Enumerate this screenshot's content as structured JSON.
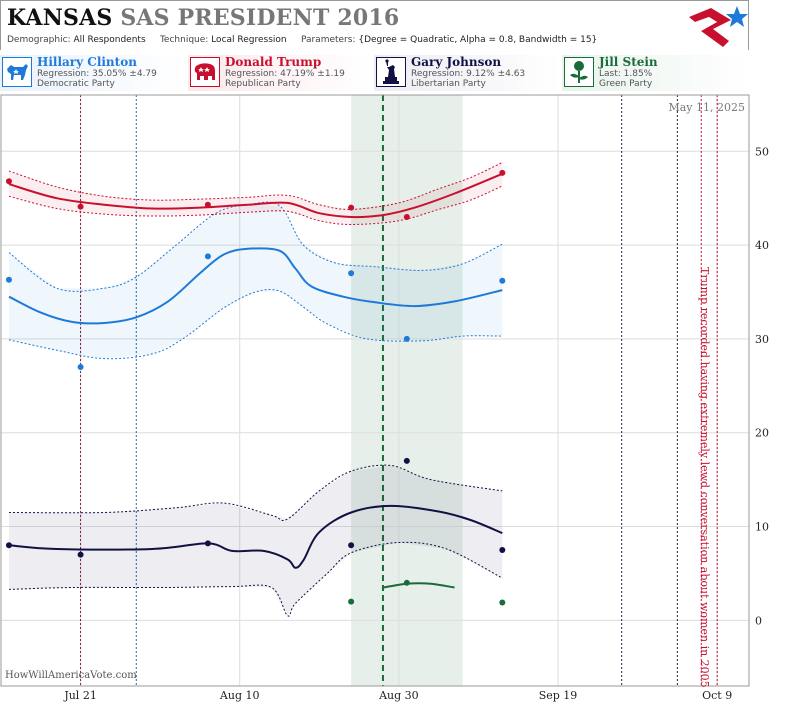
{
  "header": {
    "state": "KANSAS",
    "rest": "SAS PRESIDENT 2016",
    "params": [
      {
        "key": "Demographic:",
        "value": "All Respondents"
      },
      {
        "key": "Technique:",
        "value": "Local Regression"
      },
      {
        "key": "Parameters:",
        "value": "{Degree = Quadratic, Alpha = 0.8, Bandwidth = 15}"
      }
    ]
  },
  "candidates": [
    {
      "name": "Hillary Clinton",
      "stat": "Regression: 35.05% ±4.79",
      "party": "Democratic Party",
      "color": "#1e7ad9",
      "icon": "donkey-icon"
    },
    {
      "name": "Donald Trump",
      "stat": "Regression: 47.19% ±1.19",
      "party": "Republican Party",
      "color": "#c8102e",
      "icon": "elephant-icon"
    },
    {
      "name": "Gary Johnson",
      "stat": "Regression: 9.12% ±4.63",
      "party": "Libertarian Party",
      "color": "#111144",
      "icon": "statue-of-liberty-icon"
    },
    {
      "name": "Jill Stein",
      "stat": "Last: 1.85%",
      "party": "Green Party",
      "color": "#1a6b3a",
      "icon": "rose-icon"
    }
  ],
  "chart_data": {
    "type": "line",
    "date_label": "May 11, 2025",
    "watermark": "HowWillAmericaVote.com",
    "x_ticks": [
      {
        "label": "Jul 21",
        "x": "2016-07-21"
      },
      {
        "label": "Aug 10",
        "x": "2016-08-10"
      },
      {
        "label": "Aug 30",
        "x": "2016-08-30"
      },
      {
        "label": "Sep 19",
        "x": "2016-09-19"
      },
      {
        "label": "Oct 9",
        "x": "2016-10-09"
      }
    ],
    "x_range": [
      "2016-07-11",
      "2016-10-13"
    ],
    "y_ticks": [
      0,
      10,
      20,
      30,
      40,
      50
    ],
    "ylim": [
      -7,
      56
    ],
    "grid": true,
    "annotation": "Trump recorded having extremely lewd conversation about women in 2005",
    "series": [
      {
        "name": "Clinton",
        "color": "#1e7ad9",
        "points": [
          [
            "2016-07-12",
            36.3
          ],
          [
            "2016-07-21",
            27.0
          ],
          [
            "2016-08-06",
            38.8
          ],
          [
            "2016-08-24",
            37.0
          ],
          [
            "2016-08-31",
            30.0
          ],
          [
            "2016-09-12",
            36.2
          ]
        ],
        "trend": [
          [
            "2016-07-12",
            34.5
          ],
          [
            "2016-07-16",
            32.8
          ],
          [
            "2016-07-20",
            31.8
          ],
          [
            "2016-07-24",
            31.7
          ],
          [
            "2016-07-28",
            32.3
          ],
          [
            "2016-08-01",
            34.0
          ],
          [
            "2016-08-05",
            37.0
          ],
          [
            "2016-08-08",
            39.0
          ],
          [
            "2016-08-11",
            39.6
          ],
          [
            "2016-08-15",
            39.4
          ],
          [
            "2016-08-17",
            37.5
          ],
          [
            "2016-08-19",
            35.6
          ],
          [
            "2016-08-23",
            34.5
          ],
          [
            "2016-08-27",
            33.9
          ],
          [
            "2016-09-01",
            33.5
          ],
          [
            "2016-09-06",
            34.0
          ],
          [
            "2016-09-12",
            35.2
          ]
        ],
        "upper": [
          [
            "2016-07-12",
            39.2
          ],
          [
            "2016-07-18",
            35.4
          ],
          [
            "2016-07-24",
            35.4
          ],
          [
            "2016-07-28",
            36.6
          ],
          [
            "2016-08-02",
            40.0
          ],
          [
            "2016-08-07",
            43.4
          ],
          [
            "2016-08-11",
            44.3
          ],
          [
            "2016-08-15",
            44.2
          ],
          [
            "2016-08-18",
            40.0
          ],
          [
            "2016-08-22",
            38.1
          ],
          [
            "2016-08-27",
            37.7
          ],
          [
            "2016-09-02",
            37.3
          ],
          [
            "2016-09-07",
            38.0
          ],
          [
            "2016-09-12",
            40.1
          ]
        ],
        "lower": [
          [
            "2016-07-12",
            29.9
          ],
          [
            "2016-07-18",
            28.8
          ],
          [
            "2016-07-24",
            27.9
          ],
          [
            "2016-07-30",
            28.4
          ],
          [
            "2016-08-03",
            30.1
          ],
          [
            "2016-08-08",
            33.3
          ],
          [
            "2016-08-12",
            35.0
          ],
          [
            "2016-08-15",
            35.1
          ],
          [
            "2016-08-18",
            33.4
          ],
          [
            "2016-08-21",
            31.6
          ],
          [
            "2016-08-26",
            30.0
          ],
          [
            "2016-09-02",
            29.8
          ],
          [
            "2016-09-07",
            30.3
          ],
          [
            "2016-09-12",
            30.3
          ]
        ]
      },
      {
        "name": "Trump",
        "color": "#c8102e",
        "points": [
          [
            "2016-07-12",
            46.8
          ],
          [
            "2016-07-21",
            44.1
          ],
          [
            "2016-08-06",
            44.3
          ],
          [
            "2016-08-24",
            44.0
          ],
          [
            "2016-08-31",
            43.0
          ],
          [
            "2016-09-12",
            47.7
          ]
        ],
        "trend": [
          [
            "2016-07-12",
            46.5
          ],
          [
            "2016-07-18",
            45.0
          ],
          [
            "2016-07-24",
            44.3
          ],
          [
            "2016-07-30",
            43.9
          ],
          [
            "2016-08-05",
            44.0
          ],
          [
            "2016-08-11",
            44.3
          ],
          [
            "2016-08-16",
            44.5
          ],
          [
            "2016-08-20",
            43.4
          ],
          [
            "2016-08-24",
            43.0
          ],
          [
            "2016-08-28",
            43.2
          ],
          [
            "2016-09-01",
            44.0
          ],
          [
            "2016-09-06",
            45.5
          ],
          [
            "2016-09-12",
            47.6
          ]
        ],
        "upper": [
          [
            "2016-07-12",
            47.9
          ],
          [
            "2016-07-18",
            46.2
          ],
          [
            "2016-07-24",
            45.2
          ],
          [
            "2016-07-30",
            44.8
          ],
          [
            "2016-08-05",
            44.9
          ],
          [
            "2016-08-11",
            45.1
          ],
          [
            "2016-08-16",
            45.3
          ],
          [
            "2016-08-20",
            44.3
          ],
          [
            "2016-08-24",
            43.8
          ],
          [
            "2016-08-30",
            44.5
          ],
          [
            "2016-09-04",
            46.0
          ],
          [
            "2016-09-08",
            47.2
          ],
          [
            "2016-09-12",
            48.8
          ]
        ],
        "lower": [
          [
            "2016-07-12",
            45.2
          ],
          [
            "2016-07-18",
            43.9
          ],
          [
            "2016-07-24",
            43.3
          ],
          [
            "2016-07-30",
            43.1
          ],
          [
            "2016-08-05",
            43.2
          ],
          [
            "2016-08-11",
            43.5
          ],
          [
            "2016-08-16",
            43.6
          ],
          [
            "2016-08-20",
            42.6
          ],
          [
            "2016-08-24",
            42.2
          ],
          [
            "2016-08-30",
            42.6
          ],
          [
            "2016-09-04",
            43.8
          ],
          [
            "2016-09-08",
            44.8
          ],
          [
            "2016-09-12",
            46.3
          ]
        ]
      },
      {
        "name": "Johnson",
        "color": "#111144",
        "points": [
          [
            "2016-07-12",
            8.0
          ],
          [
            "2016-07-21",
            7.0
          ],
          [
            "2016-08-06",
            8.2
          ],
          [
            "2016-08-24",
            8.0
          ],
          [
            "2016-08-31",
            17.0
          ],
          [
            "2016-09-12",
            7.5
          ]
        ],
        "trend": [
          [
            "2016-07-12",
            8.0
          ],
          [
            "2016-07-18",
            7.6
          ],
          [
            "2016-07-30",
            7.6
          ],
          [
            "2016-08-06",
            8.2
          ],
          [
            "2016-08-09",
            7.4
          ],
          [
            "2016-08-13",
            7.4
          ],
          [
            "2016-08-16",
            6.5
          ],
          [
            "2016-08-17",
            5.6
          ],
          [
            "2016-08-18",
            6.4
          ],
          [
            "2016-08-20",
            9.4
          ],
          [
            "2016-08-24",
            11.5
          ],
          [
            "2016-08-29",
            12.2
          ],
          [
            "2016-09-04",
            11.6
          ],
          [
            "2016-09-08",
            10.7
          ],
          [
            "2016-09-12",
            9.3
          ]
        ],
        "upper": [
          [
            "2016-07-12",
            11.5
          ],
          [
            "2016-07-24",
            11.5
          ],
          [
            "2016-08-02",
            12.0
          ],
          [
            "2016-08-08",
            12.5
          ],
          [
            "2016-08-14",
            11.2
          ],
          [
            "2016-08-16",
            10.8
          ],
          [
            "2016-08-20",
            13.8
          ],
          [
            "2016-08-24",
            15.9
          ],
          [
            "2016-08-29",
            16.5
          ],
          [
            "2016-09-03",
            15.0
          ],
          [
            "2016-09-12",
            13.8
          ]
        ],
        "lower": [
          [
            "2016-07-12",
            3.3
          ],
          [
            "2016-07-20",
            3.5
          ],
          [
            "2016-08-01",
            3.5
          ],
          [
            "2016-08-09",
            3.6
          ],
          [
            "2016-08-14",
            3.5
          ],
          [
            "2016-08-16",
            0.5
          ],
          [
            "2016-08-17",
            1.8
          ],
          [
            "2016-08-21",
            5.0
          ],
          [
            "2016-08-24",
            7.2
          ],
          [
            "2016-08-30",
            8.3
          ],
          [
            "2016-09-05",
            7.6
          ],
          [
            "2016-09-12",
            4.5
          ]
        ]
      },
      {
        "name": "Stein",
        "color": "#1a6b3a",
        "points": [
          [
            "2016-08-24",
            2.0
          ],
          [
            "2016-08-31",
            4.0
          ],
          [
            "2016-09-12",
            1.9
          ]
        ],
        "trend": [
          [
            "2016-08-28",
            3.5
          ],
          [
            "2016-08-31",
            3.9
          ],
          [
            "2016-09-03",
            3.9
          ],
          [
            "2016-09-06",
            3.5
          ]
        ]
      }
    ],
    "markers": [
      {
        "x": "2016-07-21",
        "color": "#8b1a4a",
        "style": "dotted"
      },
      {
        "x": "2016-07-28",
        "color": "#1a6fa0",
        "style": "dotted"
      },
      {
        "x": "2016-08-28",
        "color": "#1a6b3a",
        "style": "dashed"
      },
      {
        "x": "2016-09-27",
        "color": "#222244",
        "style": "dotted"
      },
      {
        "x": "2016-10-04",
        "color": "#222244",
        "style": "dotted"
      },
      {
        "x": "2016-10-07",
        "color": "#c8102e",
        "style": "dotted"
      },
      {
        "x": "2016-10-09",
        "color": "#c8102e",
        "style": "dotted"
      }
    ],
    "highlight_band": {
      "from": "2016-08-24",
      "to": "2016-09-07",
      "color": "#e6efe9"
    }
  }
}
